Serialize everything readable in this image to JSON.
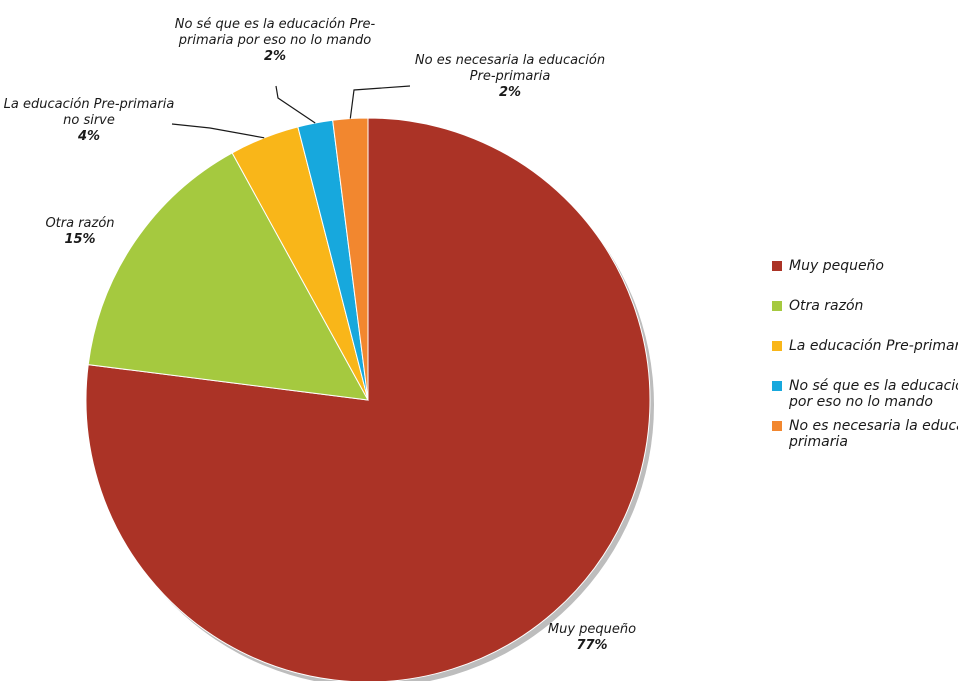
{
  "chart_data": {
    "type": "pie",
    "categories": [
      "Muy pequeño",
      "Otra razón",
      "La educación Pre-primaria no sirve",
      "No sé que es la educación Pre-primaria por eso no lo mando",
      "No es necesaria la educación Pre-primaria"
    ],
    "values": [
      77,
      15,
      4,
      2,
      2
    ],
    "colors": [
      "#ab3326",
      "#a5c93f",
      "#f9b619",
      "#17a8dd",
      "#f2872f"
    ],
    "slice_labels": [
      {
        "lines": [
          "Muy pequeño"
        ],
        "pct": "77%"
      },
      {
        "lines": [
          "Otra razón"
        ],
        "pct": "15%"
      },
      {
        "lines": [
          "La educación Pre-primaria",
          "no sirve"
        ],
        "pct": "4%"
      },
      {
        "lines": [
          "No sé que es la educación Pre-",
          "primaria por eso no lo mando"
        ],
        "pct": "2%"
      },
      {
        "lines": [
          "No es necesaria la educación",
          "Pre-primaria"
        ],
        "pct": "2%"
      }
    ],
    "legend": {
      "position": "right",
      "items": [
        {
          "lines": [
            "Muy pequeño"
          ]
        },
        {
          "lines": [
            "Otra razón"
          ]
        },
        {
          "lines": [
            "La educación Pre-primaria"
          ]
        },
        {
          "lines": [
            "No sé que es la educación",
            "por eso no lo mando"
          ]
        },
        {
          "lines": [
            "No es necesaria la educa",
            "primaria"
          ]
        }
      ]
    }
  }
}
